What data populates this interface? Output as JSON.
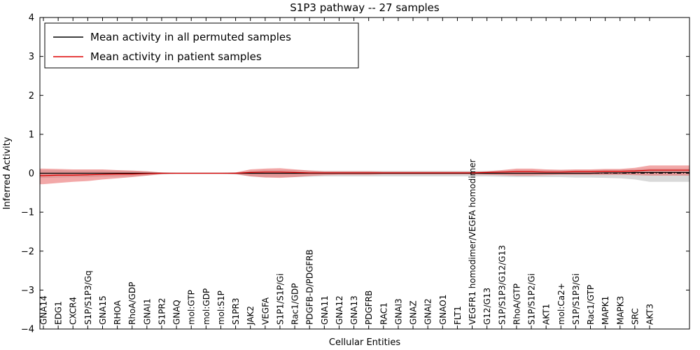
{
  "figure": {
    "title": "S1P3 pathway -- 27 samples",
    "xlabel": "Cellular Entities",
    "ylabel": "Inferred Activity"
  },
  "legend": {
    "entries": [
      {
        "label": "Mean activity in all permuted samples",
        "color": "#000000"
      },
      {
        "label": "Mean activity in patient samples",
        "color": "#dd0000"
      }
    ]
  },
  "chart_data": {
    "type": "line",
    "title": "S1P3 pathway -- 27 samples",
    "xlabel": "Cellular Entities",
    "ylabel": "Inferred Activity",
    "ylim": [
      -4,
      4
    ],
    "yticks": [
      -4,
      -3,
      -2,
      -1,
      0,
      1,
      2,
      3,
      4
    ],
    "ytick_labels": [
      "−4",
      "−3",
      "−2",
      "−1",
      "0",
      "1",
      "2",
      "3",
      "4"
    ],
    "grid": false,
    "legend_position": "upper left",
    "zero_line": {
      "value": 0,
      "style": "dash-dot",
      "color": "#000000"
    },
    "categories": [
      "GNA14",
      "EDG1",
      "CXCR4",
      "S1P/S1P3/Gq",
      "GNA15",
      "RHOA",
      "RhoA/GDP",
      "GNAI1",
      "S1PR2",
      "GNAQ",
      "mol:GTP",
      "mol:GDP",
      "mol:S1P",
      "S1PR3",
      "JAK2",
      "VEGFA",
      "S1P1/S1P/Gi",
      "Rac1/GDP",
      "PDGFB-D/PDGFRB",
      "GNA11",
      "GNA12",
      "GNA13",
      "PDGFRB",
      "RAC1",
      "GNAI3",
      "GNAZ",
      "GNAI2",
      "GNAO1",
      "FLT1",
      "VEGFR1 homodimer/VEGFA homodimer",
      "G12/G13",
      "S1P/S1P3/G12/G13",
      "RhoA/GTP",
      "S1P/S1P2/Gi",
      "AKT1",
      "mol:Ca2+",
      "S1P/S1P3/Gi",
      "Rac1/GTP",
      "MAPK1",
      "MAPK3",
      "SRC",
      "AKT3"
    ],
    "series": [
      {
        "name": "Mean activity in all permuted samples",
        "color": "#000000",
        "band_color": "#aaaaaa",
        "band_opacity": 0.45,
        "values": [
          0,
          0,
          0,
          0,
          0,
          0,
          0,
          0,
          0,
          0,
          0,
          0,
          0,
          0,
          0,
          0,
          0,
          0,
          0,
          0,
          0,
          0,
          0,
          0,
          0,
          0,
          0,
          0,
          0,
          0,
          0,
          0,
          0,
          0,
          0,
          0,
          0,
          0,
          0.01,
          0.01,
          0.02,
          0.02
        ],
        "band_low": [
          -0.12,
          -0.11,
          -0.1,
          -0.1,
          -0.09,
          -0.09,
          -0.08,
          -0.06,
          -0.03,
          -0.01,
          -0.01,
          -0.01,
          -0.01,
          -0.03,
          -0.08,
          -0.1,
          -0.1,
          -0.1,
          -0.09,
          -0.08,
          -0.08,
          -0.08,
          -0.08,
          -0.08,
          -0.08,
          -0.08,
          -0.08,
          -0.08,
          -0.08,
          -0.08,
          -0.08,
          -0.09,
          -0.1,
          -0.1,
          -0.1,
          -0.1,
          -0.11,
          -0.11,
          -0.12,
          -0.13,
          -0.16,
          -0.22
        ],
        "band_high": [
          0.08,
          0.08,
          0.07,
          0.07,
          0.07,
          0.07,
          0.06,
          0.05,
          0.02,
          0.01,
          0.01,
          0.01,
          0.01,
          0.02,
          0.06,
          0.08,
          0.08,
          0.08,
          0.07,
          0.06,
          0.06,
          0.06,
          0.06,
          0.06,
          0.06,
          0.06,
          0.06,
          0.06,
          0.06,
          0.06,
          0.06,
          0.07,
          0.08,
          0.08,
          0.08,
          0.08,
          0.08,
          0.08,
          0.09,
          0.09,
          0.1,
          0.12
        ]
      },
      {
        "name": "Mean activity in patient samples",
        "color": "#dd0000",
        "band_color": "#e86060",
        "band_opacity": 0.55,
        "values": [
          -0.06,
          -0.05,
          -0.05,
          -0.04,
          -0.03,
          -0.02,
          -0.02,
          -0.01,
          0,
          0,
          0,
          0,
          0,
          0,
          0.02,
          0.03,
          0.03,
          0.02,
          0.01,
          0.01,
          0.01,
          0.01,
          0.01,
          0.01,
          0.01,
          0.01,
          0.01,
          0.01,
          0.01,
          0.01,
          0.02,
          0.03,
          0.04,
          0.04,
          0.03,
          0.03,
          0.04,
          0.04,
          0.05,
          0.05,
          0.06,
          0.08
        ],
        "band_low": [
          -0.28,
          -0.25,
          -0.22,
          -0.2,
          -0.16,
          -0.13,
          -0.1,
          -0.06,
          -0.02,
          0,
          0,
          0,
          0,
          -0.02,
          -0.08,
          -0.11,
          -0.12,
          -0.1,
          -0.07,
          -0.05,
          -0.04,
          -0.04,
          -0.04,
          -0.03,
          -0.03,
          -0.03,
          -0.03,
          -0.03,
          -0.03,
          -0.03,
          -0.04,
          -0.05,
          -0.06,
          -0.06,
          -0.05,
          -0.04,
          -0.04,
          -0.04,
          -0.04,
          -0.04,
          -0.05,
          -0.06
        ],
        "band_high": [
          0.12,
          0.11,
          0.1,
          0.1,
          0.1,
          0.08,
          0.07,
          0.05,
          0.02,
          0,
          0,
          0,
          0,
          0.02,
          0.1,
          0.12,
          0.13,
          0.1,
          0.07,
          0.05,
          0.05,
          0.05,
          0.05,
          0.04,
          0.04,
          0.04,
          0.04,
          0.04,
          0.04,
          0.04,
          0.05,
          0.08,
          0.12,
          0.12,
          0.1,
          0.09,
          0.1,
          0.1,
          0.11,
          0.11,
          0.14,
          0.2
        ]
      }
    ]
  }
}
